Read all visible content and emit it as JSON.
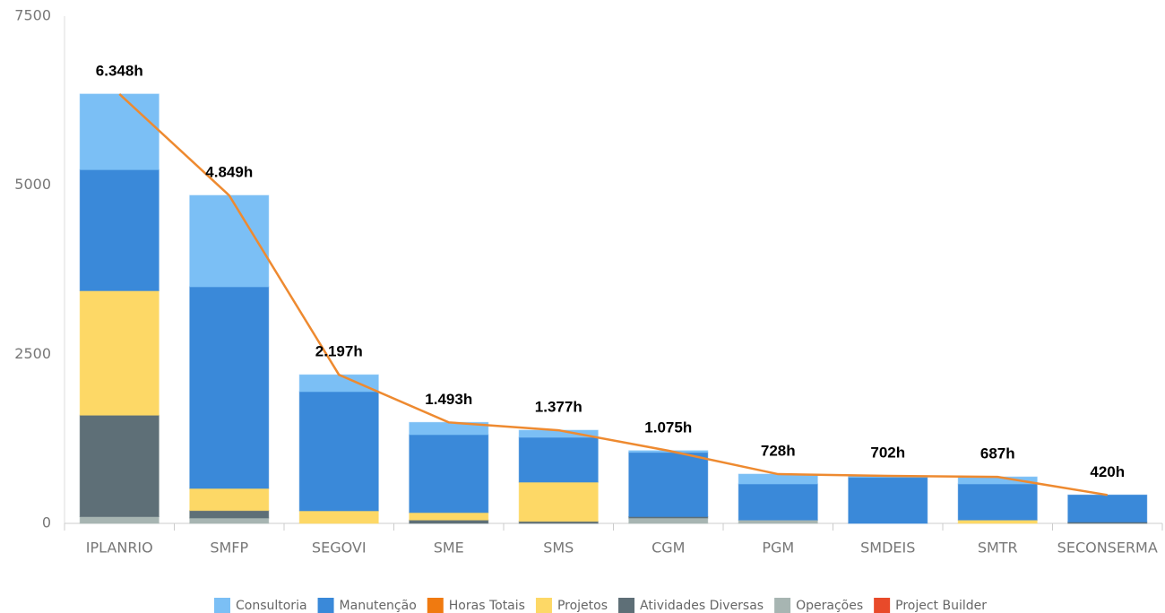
{
  "chart_data": {
    "type": "bar",
    "categories": [
      "IPLANRIO",
      "SMFP",
      "SEGOVI",
      "SME",
      "SMS",
      "CGM",
      "PGM",
      "SMDEIS",
      "SMTR",
      "SECONSERMA"
    ],
    "series": [
      {
        "name": "Consultoria",
        "color": "#7bbff5",
        "values": [
          1118,
          1351,
          249,
          181,
          105,
          25,
          145,
          22,
          104,
          0
        ]
      },
      {
        "name": "Manutenção",
        "color": "#3a89d9",
        "values": [
          1790,
          2981,
          1762,
          1152,
          662,
          950,
          533,
          680,
          533,
          400
        ]
      },
      {
        "name": "Horas Totais",
        "type": "line",
        "color": "#f07a10",
        "values": [
          6348,
          4849,
          2197,
          1493,
          1377,
          1075,
          728,
          702,
          687,
          420
        ],
        "value_labels": [
          "6.348h",
          "4.849h",
          "2.197h",
          "1.493h",
          "1.377h",
          "1.075h",
          "728h",
          "702h",
          "687h",
          "420h"
        ]
      },
      {
        "name": "Projetos",
        "color": "#fdd866",
        "values": [
          1840,
          327,
          186,
          110,
          580,
          0,
          0,
          0,
          50,
          0
        ]
      },
      {
        "name": "Atividades Diversas",
        "color": "#5e6f77",
        "values": [
          1500,
          110,
          0,
          50,
          30,
          20,
          0,
          0,
          0,
          20
        ]
      },
      {
        "name": "Operações",
        "color": "#a7b5b2",
        "values": [
          100,
          80,
          0,
          0,
          0,
          80,
          50,
          0,
          0,
          0
        ]
      },
      {
        "name": "Project Builder",
        "color": "#e84a2a",
        "values": [
          0,
          0,
          0,
          0,
          0,
          0,
          0,
          0,
          0,
          0
        ]
      }
    ],
    "ylim": [
      0,
      7500
    ],
    "yticks": [
      0,
      2500,
      5000,
      7500
    ],
    "grid": false
  }
}
